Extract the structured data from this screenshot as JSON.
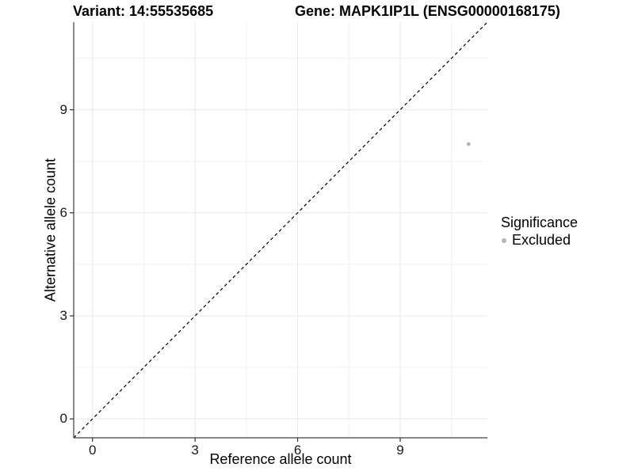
{
  "chart_data": {
    "type": "scatter",
    "titles": {
      "variant": "Variant: 14:55535685",
      "gene": "Gene: MAPK1IP1L (ENSG00000168175)"
    },
    "xlabel": "Reference allele count",
    "ylabel": "Alternative allele count",
    "xlim": [
      -0.55,
      11.55
    ],
    "ylim": [
      -0.55,
      11.55
    ],
    "x_ticks": [
      0,
      3,
      6,
      9
    ],
    "y_ticks": [
      0,
      3,
      6,
      9
    ],
    "x_minor_ticks": [
      1.5,
      4.5,
      7.5,
      10.5
    ],
    "y_minor_ticks": [
      1.5,
      4.5,
      7.5,
      10.5
    ],
    "grid": true,
    "points": [
      {
        "x": 11,
        "y": 8,
        "series": "Excluded"
      }
    ],
    "reference_line": {
      "kind": "identity-diagonal",
      "style": "dashed",
      "color": "#000000"
    },
    "legend": {
      "title": "Significance",
      "position": "right",
      "items": [
        {
          "label": "Excluded",
          "color": "#b5b5b5"
        }
      ]
    },
    "colors": {
      "background": "#ffffff",
      "grid_major": "#e8e8e8",
      "grid_minor": "#f2f2f2",
      "axis_line": "#3d3d3d",
      "tick_mark": "#333333",
      "point_excluded": "#b5b5b5"
    }
  }
}
